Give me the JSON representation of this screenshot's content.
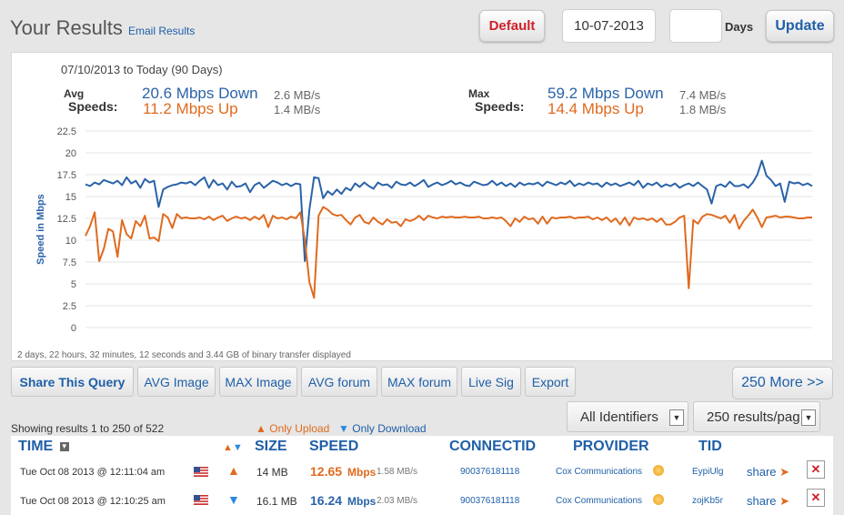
{
  "header": {
    "title": "Your Results",
    "email_link": "Email Results",
    "default_button": "Default",
    "date_value": "10-07-2013",
    "days_value": "",
    "days_label": "Days",
    "update_button": "Update"
  },
  "summary": {
    "range": "07/10/2013 to Today (90 Days)",
    "avg_label_1": "Avg",
    "avg_label_2": "Speeds:",
    "avg_down": "20.6 Mbps Down",
    "avg_down_mb": "2.6 MB/s",
    "avg_up": "11.2 Mbps Up",
    "avg_up_mb": "1.4 MB/s",
    "max_label_1": "Max",
    "max_label_2": "Speeds:",
    "max_down": "59.2 Mbps Down",
    "max_down_mb": "7.4 MB/s",
    "max_up": "14.4 Mbps Up",
    "max_up_mb": "1.8 MB/s",
    "footnote": "2 days, 22 hours, 32 minutes, 12 seconds and 3.44 GB of binary transfer displayed"
  },
  "chart_data": {
    "type": "line",
    "ylabel": "Speed in Mbps",
    "ylim": [
      0,
      22.5
    ],
    "yticks": [
      "0",
      "2.5",
      "5",
      "7.5",
      "10",
      "12.5",
      "15",
      "17.5",
      "20",
      "22.5"
    ],
    "grid": true,
    "colors": {
      "down": "#2a63a8",
      "up": "#e06a1f"
    },
    "series": [
      {
        "values": [
          16.4,
          16.2,
          16.6,
          16.4,
          16.9,
          16.7,
          16.5,
          16.8,
          16.3,
          17.2,
          16.5,
          16.8,
          16.0,
          17.0,
          16.6,
          16.8,
          13.8,
          15.8,
          16.1,
          16.3,
          16.4,
          16.6,
          16.5,
          16.7,
          16.3,
          16.8,
          17.2,
          16.0,
          16.9,
          16.3,
          16.5,
          15.8,
          16.7,
          16.1,
          16.2,
          16.5,
          15.5,
          16.3,
          16.6,
          16.0,
          16.4,
          16.8,
          16.6,
          16.3,
          16.5,
          16.2,
          16.5,
          16.4,
          7.6,
          13.5,
          17.2,
          17.1,
          14.8,
          15.6,
          15.2,
          15.8,
          15.3,
          16.0,
          15.7,
          16.5,
          16.1,
          16.6,
          16.2,
          15.9,
          16.6,
          16.3,
          16.4,
          16.0,
          16.7,
          16.4,
          16.3,
          16.6,
          16.2,
          16.5,
          16.9,
          16.1,
          16.4,
          16.6,
          16.3,
          16.5,
          16.8,
          16.4,
          16.6,
          16.3,
          16.2,
          16.7,
          16.5,
          16.3,
          16.4,
          16.8,
          16.3,
          16.6,
          16.2,
          16.5,
          16.1,
          16.6,
          16.3,
          16.5,
          16.4,
          16.6,
          16.2,
          16.7,
          16.5,
          16.3,
          16.6,
          16.4,
          16.8,
          16.2,
          16.5,
          16.3,
          16.6,
          16.4,
          16.5,
          16.1,
          16.6,
          16.3,
          16.5,
          16.2,
          16.4,
          16.6,
          16.3,
          16.8,
          16.0,
          16.5,
          16.3,
          16.6,
          16.1,
          16.4,
          16.2,
          16.5,
          16.0,
          16.3,
          16.5,
          16.2,
          16.6,
          16.2,
          15.8,
          14.2,
          16.2,
          16.4,
          16.1,
          16.7,
          16.2,
          16.2,
          16.4,
          16.0,
          16.6,
          17.5,
          19.1,
          17.4,
          16.9,
          16.2,
          16.5,
          14.4,
          16.7,
          16.5,
          16.6,
          16.3,
          16.5,
          16.2
        ]
      },
      {
        "values": [
          10.5,
          11.6,
          13.2,
          7.6,
          9.0,
          11.3,
          11.0,
          8.1,
          12.3,
          10.7,
          10.2,
          12.2,
          11.6,
          12.8,
          10.2,
          10.3,
          9.9,
          13.0,
          12.6,
          11.4,
          13.0,
          12.5,
          12.6,
          12.5,
          12.5,
          12.6,
          12.4,
          12.7,
          12.3,
          12.6,
          12.8,
          12.2,
          12.5,
          12.7,
          12.5,
          12.6,
          12.3,
          12.7,
          12.4,
          12.9,
          11.5,
          12.8,
          12.5,
          12.6,
          12.4,
          12.7,
          12.5,
          13.2,
          10.0,
          5.2,
          3.4,
          12.8,
          13.8,
          13.5,
          13.0,
          12.8,
          12.9,
          12.3,
          11.8,
          12.6,
          12.9,
          12.1,
          11.9,
          12.6,
          12.1,
          11.8,
          12.4,
          12.0,
          12.1,
          11.6,
          12.4,
          12.2,
          12.4,
          12.8,
          12.3,
          12.8,
          12.6,
          12.5,
          12.7,
          12.6,
          12.7,
          12.6,
          12.6,
          12.7,
          12.6,
          12.6,
          12.7,
          12.5,
          12.5,
          12.6,
          12.5,
          12.6,
          12.2,
          11.6,
          12.5,
          12.1,
          12.7,
          12.4,
          12.5,
          11.9,
          12.7,
          11.9,
          12.6,
          12.5,
          12.6,
          12.6,
          12.7,
          12.5,
          12.6,
          12.6,
          12.7,
          12.4,
          12.6,
          12.3,
          12.6,
          12.1,
          12.5,
          11.8,
          12.6,
          11.7,
          12.6,
          12.4,
          12.5,
          12.3,
          12.5,
          12.1,
          12.5,
          11.8,
          11.8,
          12.1,
          12.6,
          12.8,
          4.5,
          12.3,
          11.9,
          12.7,
          13.0,
          12.9,
          12.7,
          12.5,
          12.8,
          12.0,
          12.9,
          11.3,
          12.2,
          12.8,
          13.5,
          12.6,
          11.5,
          12.6,
          12.7,
          12.8,
          12.6,
          12.7,
          12.7,
          12.6,
          12.5,
          12.5,
          12.6,
          12.6
        ]
      }
    ]
  },
  "toolbar": {
    "share_query": "Share This Query",
    "avg_image": "AVG Image",
    "max_image": "MAX Image",
    "avg_forum": "AVG forum",
    "max_forum": "MAX forum",
    "live_sig": "Live Sig",
    "export": "Export",
    "more": "250 More >>"
  },
  "filters": {
    "showing": "Showing results 1 to 250 of 522",
    "only_upload": "Only Upload",
    "only_download": "Only Download",
    "identifiers": "All Identifiers",
    "per_page": "250 results/pag"
  },
  "table": {
    "headers": {
      "time": "TIME",
      "size": "SIZE",
      "speed": "SPEED",
      "connectid": "CONNECTID",
      "provider": "PROVIDER",
      "tid": "TID"
    },
    "rows": [
      {
        "time": "Tue Oct 08 2013 @ 12:11:04 am",
        "direction": "up",
        "size": "14 MB",
        "speed": "12.65",
        "speed_unit": "Mbps",
        "speed_mb": "1.58 MB/s",
        "connectid": "900376181118",
        "provider": "Cox Communications",
        "tid": "EypiUlg",
        "share": "share"
      },
      {
        "time": "Tue Oct 08 2013 @ 12:10:25 am",
        "direction": "down",
        "size": "16.1 MB",
        "speed": "16.24",
        "speed_unit": "Mbps",
        "speed_mb": "2.03 MB/s",
        "connectid": "900376181118",
        "provider": "Cox Communications",
        "tid": "zojKb5r",
        "share": "share"
      }
    ]
  }
}
